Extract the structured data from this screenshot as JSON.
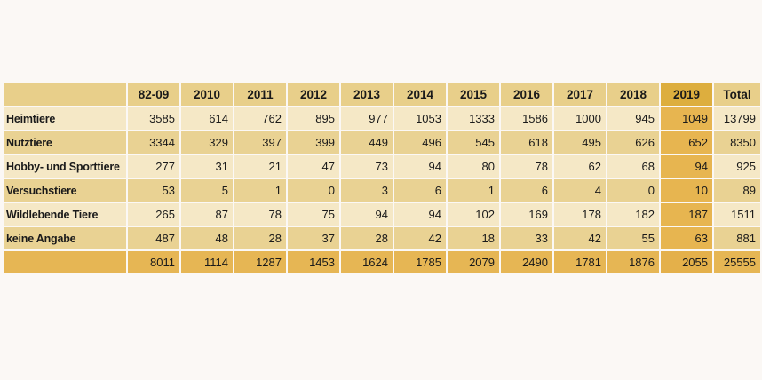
{
  "table": {
    "corner": "",
    "columns": [
      "82-09",
      "2010",
      "2011",
      "2012",
      "2013",
      "2014",
      "2015",
      "2016",
      "2017",
      "2018",
      "2019",
      "Total"
    ],
    "highlight_column": "2019",
    "rows": [
      {
        "label": "Heimtiere",
        "values": [
          "3585",
          "614",
          "762",
          "895",
          "977",
          "1053",
          "1333",
          "1586",
          "1000",
          "945",
          "1049",
          "13799"
        ]
      },
      {
        "label": "Nutztiere",
        "values": [
          "3344",
          "329",
          "397",
          "399",
          "449",
          "496",
          "545",
          "618",
          "495",
          "626",
          "652",
          "8350"
        ]
      },
      {
        "label": "Hobby- und Sporttiere",
        "values": [
          "277",
          "31",
          "21",
          "47",
          "73",
          "94",
          "80",
          "78",
          "62",
          "68",
          "94",
          "925"
        ]
      },
      {
        "label": "Versuchstiere",
        "values": [
          "53",
          "5",
          "1",
          "0",
          "3",
          "6",
          "1",
          "6",
          "4",
          "0",
          "10",
          "89"
        ]
      },
      {
        "label": "Wildlebende Tiere",
        "values": [
          "265",
          "87",
          "78",
          "75",
          "94",
          "94",
          "102",
          "169",
          "178",
          "182",
          "187",
          "1511"
        ]
      },
      {
        "label": "keine Angabe",
        "values": [
          "487",
          "48",
          "28",
          "37",
          "28",
          "42",
          "18",
          "33",
          "42",
          "55",
          "63",
          "881"
        ]
      }
    ],
    "totals": {
      "label": "",
      "values": [
        "8011",
        "1114",
        "1287",
        "1453",
        "1624",
        "1785",
        "2079",
        "2490",
        "1781",
        "1876",
        "2055",
        "25555"
      ]
    }
  },
  "colors": {
    "header": "#e8cf8a",
    "row_light": "#f5e8c6",
    "row_dark": "#e9d293",
    "highlight": "#e7b550",
    "totals": "#e6b654",
    "background": "#fbf8f5"
  }
}
